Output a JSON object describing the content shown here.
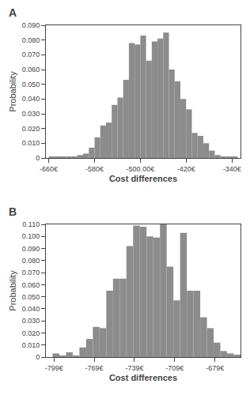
{
  "chart_data": [
    {
      "type": "histogram",
      "title": "A",
      "bins": [
        -660,
        -650,
        -640,
        -630,
        -620,
        -610,
        -600,
        -590,
        -580,
        -570,
        -560,
        -550,
        -540,
        -530,
        -520,
        -510,
        -500,
        -490,
        -480,
        -470,
        -460,
        -450,
        -440,
        -430,
        -420,
        -410,
        -400,
        -390,
        -380,
        -370,
        -360,
        -350,
        -340,
        -330
      ],
      "values": [
        0.001,
        0.001,
        0.001,
        0.001,
        0.001,
        0.002,
        0.003,
        0.007,
        0.014,
        0.022,
        0.024,
        0.036,
        0.041,
        0.053,
        0.078,
        0.077,
        0.083,
        0.066,
        0.079,
        0.081,
        0.085,
        0.06,
        0.052,
        0.04,
        0.033,
        0.017,
        0.015,
        0.01,
        0.005,
        0.002,
        0.001,
        0.001,
        0.001
      ],
      "color": "#8c8c8c",
      "xlabel": "Cost differences",
      "ylabel": "Probability",
      "xlim": [
        -665,
        -325
      ],
      "xticks": [
        {
          "value": -660,
          "label": "-660€"
        },
        {
          "value": -580,
          "label": "-580€"
        },
        {
          "value": -500,
          "label": "-500.00€"
        },
        {
          "value": -420,
          "label": "-420€"
        },
        {
          "value": -340,
          "label": "-340€"
        }
      ],
      "ylim": [
        0,
        0.09
      ],
      "yticks": [
        0,
        {
          "value": 0.01,
          "label": "0.010"
        },
        {
          "value": 0.02,
          "label": "0.020"
        },
        {
          "value": 0.03,
          "label": "0.030"
        },
        {
          "value": 0.04,
          "label": "0.040"
        },
        {
          "value": 0.05,
          "label": "0.050"
        },
        {
          "value": 0.06,
          "label": "0.060"
        },
        {
          "value": 0.07,
          "label": "0.070"
        },
        {
          "value": 0.08,
          "label": "0.080"
        },
        {
          "value": 0.09,
          "label": "0.090"
        }
      ],
      "grid": false
    },
    {
      "type": "histogram",
      "title": "B",
      "bins": [
        -800,
        -795,
        -790,
        -785,
        -780,
        -775,
        -770,
        -765,
        -760,
        -755,
        -750,
        -745,
        -740,
        -735,
        -730,
        -725,
        -720,
        -715,
        -710,
        -705,
        -700,
        -695,
        -690,
        -685,
        -680,
        -675,
        -670,
        -665,
        -660
      ],
      "values": [
        0.003,
        0.001,
        0.004,
        0.001,
        0.008,
        0.015,
        0.025,
        0.024,
        0.055,
        0.065,
        0.065,
        0.092,
        0.109,
        0.108,
        0.1,
        0.099,
        0.11,
        0.075,
        0.047,
        0.103,
        0.055,
        0.055,
        0.033,
        0.024,
        0.012,
        0.005,
        0.003,
        0.002
      ],
      "color": "#8c8c8c",
      "xlabel": "Cost differences",
      "ylabel": "Probability",
      "xlim": [
        -805,
        -660
      ],
      "xticks": [
        {
          "value": -799,
          "label": "-799€"
        },
        {
          "value": -769,
          "label": "-769€"
        },
        {
          "value": -739,
          "label": "-739€"
        },
        {
          "value": -709,
          "label": "-709€"
        },
        {
          "value": -679,
          "label": "-679€"
        }
      ],
      "ylim": [
        0,
        0.11
      ],
      "yticks": [
        0,
        {
          "value": 0.01,
          "label": "0.010"
        },
        {
          "value": 0.02,
          "label": "0.020"
        },
        {
          "value": 0.03,
          "label": "0.030"
        },
        {
          "value": 0.04,
          "label": "0.040"
        },
        {
          "value": 0.05,
          "label": "0.050"
        },
        {
          "value": 0.06,
          "label": "0.060"
        },
        {
          "value": 0.07,
          "label": "0.070"
        },
        {
          "value": 0.08,
          "label": "0.080"
        },
        {
          "value": 0.09,
          "label": "0.090"
        },
        {
          "value": 0.1,
          "label": "0.100"
        },
        {
          "value": 0.11,
          "label": "0.110"
        }
      ],
      "grid": false
    }
  ]
}
